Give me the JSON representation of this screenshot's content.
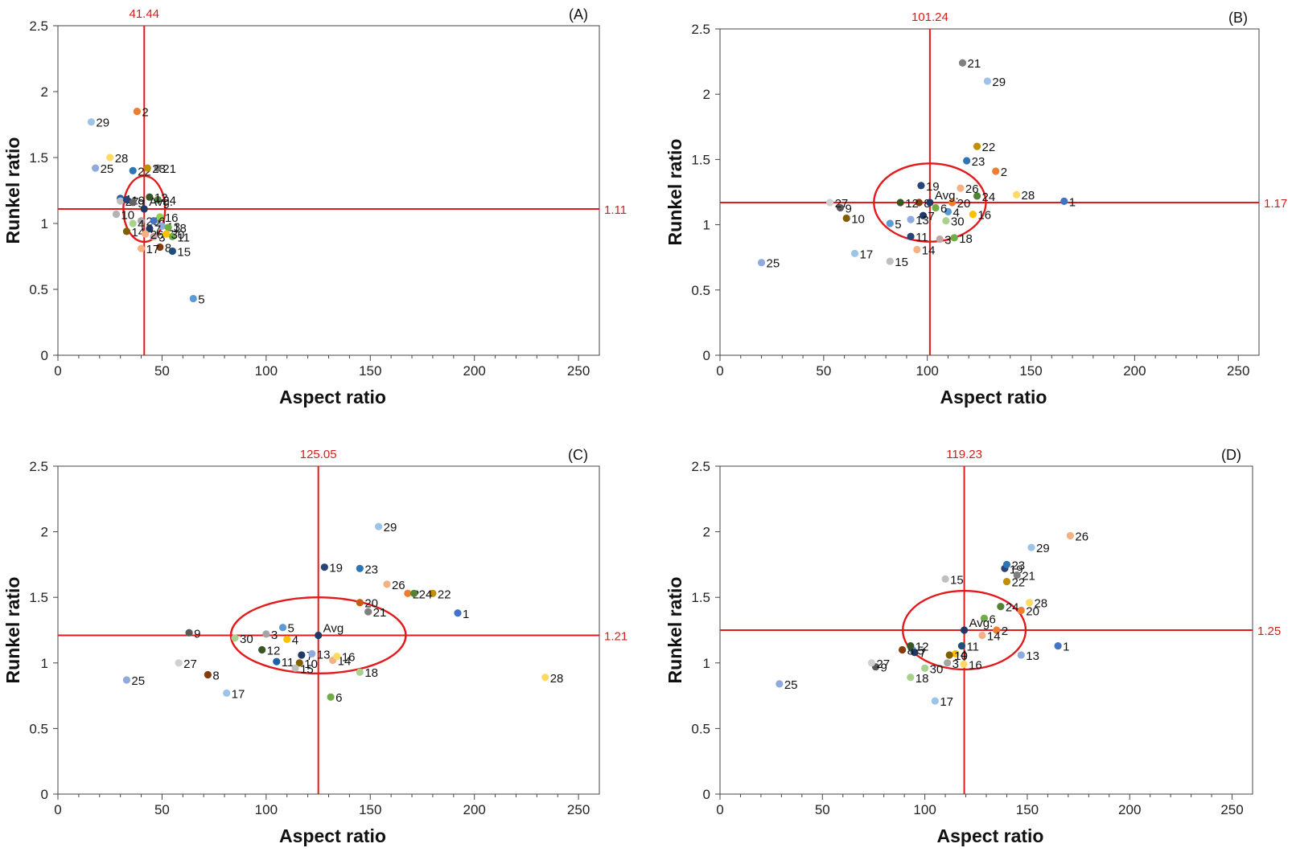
{
  "chart_data": [
    {
      "type": "scatter",
      "panel": "(A)",
      "xlabel": "Aspect ratio",
      "ylabel": "Runkel ratio",
      "xlim": [
        0,
        260
      ],
      "ylim": [
        0,
        2.5
      ],
      "xticks": [
        "0",
        "50",
        "100",
        "150",
        "200",
        "250"
      ],
      "yticks": [
        "0",
        "0.5",
        "1",
        "1.5",
        "2",
        "2.5"
      ],
      "avg": {
        "x": 41.44,
        "y": 1.11,
        "x_label": "41.44",
        "y_label": "1.11",
        "point_label": "Avg."
      },
      "ellipse": {
        "cx": 41.44,
        "cy": 1.11,
        "rx": 10,
        "ry": 0.25
      },
      "points": [
        {
          "label": "1",
          "x": 30,
          "y": 1.19,
          "color": "#1f5fa8"
        },
        {
          "label": "2",
          "x": 38,
          "y": 1.85,
          "color": "#ed7d31"
        },
        {
          "label": "5",
          "x": 65,
          "y": 0.43,
          "color": "#5b9bd5"
        },
        {
          "label": "11",
          "x": 55,
          "y": 0.9,
          "color": "#70ad47"
        },
        {
          "label": "14",
          "x": 33,
          "y": 0.94,
          "color": "#7f6000"
        },
        {
          "label": "20",
          "x": 40,
          "y": 1.02,
          "color": "#a5a5a5"
        },
        {
          "label": "21",
          "x": 48,
          "y": 1.42,
          "color": "#7f7f7f"
        },
        {
          "label": "22",
          "x": 36,
          "y": 1.4,
          "color": "#2e75b6"
        },
        {
          "label": "23",
          "x": 43,
          "y": 1.42,
          "color": "#bf9000"
        },
        {
          "label": "25",
          "x": 18,
          "y": 1.42,
          "color": "#8faadc"
        },
        {
          "label": "28",
          "x": 25,
          "y": 1.5,
          "color": "#ffd966"
        },
        {
          "label": "29",
          "x": 16,
          "y": 1.77,
          "color": "#9dc3e6"
        },
        {
          "label": "27",
          "x": 30,
          "y": 1.17,
          "color": "#bfbfbf"
        },
        {
          "label": "19",
          "x": 33,
          "y": 1.18,
          "color": "#264478"
        },
        {
          "label": "9",
          "x": 36,
          "y": 1.16,
          "color": "#636363"
        },
        {
          "label": "10",
          "x": 28,
          "y": 1.07,
          "color": "#b4b4b4"
        },
        {
          "label": "4",
          "x": 36,
          "y": 1.0,
          "color": "#a9d18e"
        },
        {
          "label": "24",
          "x": 48,
          "y": 1.18,
          "color": "#548235"
        },
        {
          "label": "12",
          "x": 44,
          "y": 1.2,
          "color": "#375623"
        },
        {
          "label": "16",
          "x": 49,
          "y": 1.05,
          "color": "#92d050"
        },
        {
          "label": "6",
          "x": 46,
          "y": 1.02,
          "color": "#4472c4"
        },
        {
          "label": "13",
          "x": 50,
          "y": 0.98,
          "color": "#8faadc"
        },
        {
          "label": "18",
          "x": 53,
          "y": 0.97,
          "color": "#70ad47"
        },
        {
          "label": "7",
          "x": 44,
          "y": 0.96,
          "color": "#203864"
        },
        {
          "label": "3",
          "x": 46,
          "y": 0.9,
          "color": "#c5a5a5"
        },
        {
          "label": "8",
          "x": 49,
          "y": 0.82,
          "color": "#843c0c"
        },
        {
          "label": "15",
          "x": 55,
          "y": 0.79,
          "color": "#1f4e79"
        },
        {
          "label": "17",
          "x": 40,
          "y": 0.81,
          "color": "#f4b183"
        },
        {
          "label": "26",
          "x": 42,
          "y": 0.92,
          "color": "#f4b183"
        },
        {
          "label": "30",
          "x": 52,
          "y": 0.92,
          "color": "#ffc000"
        }
      ]
    },
    {
      "type": "scatter",
      "panel": "(B)",
      "xlabel": "Aspect ratio",
      "ylabel": "Runkel ratio",
      "xlim": [
        0,
        260
      ],
      "ylim": [
        0,
        2.5
      ],
      "xticks": [
        "0",
        "50",
        "100",
        "150",
        "200",
        "250"
      ],
      "yticks": [
        "0",
        "0.5",
        "1",
        "1.5",
        "2",
        "2.5"
      ],
      "avg": {
        "x": 101.24,
        "y": 1.17,
        "x_label": "101.24",
        "y_label": "1.17",
        "point_label": "Avg."
      },
      "ellipse": {
        "cx": 101.24,
        "cy": 1.17,
        "rx": 27,
        "ry": 0.3
      },
      "points": [
        {
          "label": "1",
          "x": 166,
          "y": 1.18,
          "color": "#4472c4"
        },
        {
          "label": "2",
          "x": 133,
          "y": 1.41,
          "color": "#ed7d31"
        },
        {
          "label": "3",
          "x": 106,
          "y": 0.89,
          "color": "#c5a5a5"
        },
        {
          "label": "4",
          "x": 110,
          "y": 1.1,
          "color": "#5b9bd5"
        },
        {
          "label": "5",
          "x": 82,
          "y": 1.01,
          "color": "#5b9bd5"
        },
        {
          "label": "6",
          "x": 104,
          "y": 1.13,
          "color": "#70ad47"
        },
        {
          "label": "7",
          "x": 98,
          "y": 1.07,
          "color": "#203864"
        },
        {
          "label": "8",
          "x": 96,
          "y": 1.17,
          "color": "#843c0c"
        },
        {
          "label": "9",
          "x": 58,
          "y": 1.13,
          "color": "#595959"
        },
        {
          "label": "10",
          "x": 61,
          "y": 1.05,
          "color": "#7f6000"
        },
        {
          "label": "11",
          "x": 92,
          "y": 0.91,
          "color": "#264478"
        },
        {
          "label": "12",
          "x": 87,
          "y": 1.17,
          "color": "#375623"
        },
        {
          "label": "13",
          "x": 92,
          "y": 1.04,
          "color": "#8faadc"
        },
        {
          "label": "14",
          "x": 95,
          "y": 0.81,
          "color": "#f4b183"
        },
        {
          "label": "15",
          "x": 82,
          "y": 0.72,
          "color": "#bfbfbf"
        },
        {
          "label": "16",
          "x": 122,
          "y": 1.08,
          "color": "#ffc000"
        },
        {
          "label": "17",
          "x": 65,
          "y": 0.78,
          "color": "#9dc3e6"
        },
        {
          "label": "18",
          "x": 113,
          "y": 0.9,
          "color": "#70ad47"
        },
        {
          "label": "19",
          "x": 97,
          "y": 1.3,
          "color": "#264478"
        },
        {
          "label": "20",
          "x": 112,
          "y": 1.17,
          "color": "#ed7d31"
        },
        {
          "label": "21",
          "x": 117,
          "y": 2.24,
          "color": "#7f7f7f"
        },
        {
          "label": "22",
          "x": 124,
          "y": 1.6,
          "color": "#bf9000"
        },
        {
          "label": "23",
          "x": 119,
          "y": 1.49,
          "color": "#2e75b6"
        },
        {
          "label": "24",
          "x": 124,
          "y": 1.22,
          "color": "#548235"
        },
        {
          "label": "25",
          "x": 20,
          "y": 0.71,
          "color": "#8faadc"
        },
        {
          "label": "26",
          "x": 116,
          "y": 1.28,
          "color": "#f4b183"
        },
        {
          "label": "27",
          "x": 53,
          "y": 1.17,
          "color": "#d0d0d0"
        },
        {
          "label": "28",
          "x": 143,
          "y": 1.23,
          "color": "#ffd966"
        },
        {
          "label": "29",
          "x": 129,
          "y": 2.1,
          "color": "#9dc3e6"
        },
        {
          "label": "30",
          "x": 109,
          "y": 1.03,
          "color": "#a9d18e"
        }
      ]
    },
    {
      "type": "scatter",
      "panel": "(C)",
      "xlabel": "Aspect ratio",
      "ylabel": "Runkel ratio",
      "xlim": [
        0,
        260
      ],
      "ylim": [
        0,
        2.5
      ],
      "xticks": [
        "0",
        "50",
        "100",
        "150",
        "200",
        "250"
      ],
      "yticks": [
        "0",
        "0.5",
        "1",
        "1.5",
        "2",
        "2.5"
      ],
      "avg": {
        "x": 125.05,
        "y": 1.21,
        "x_label": "125.05",
        "y_label": "1.21",
        "point_label": "Avg"
      },
      "ellipse": {
        "cx": 125.05,
        "cy": 1.21,
        "rx": 42,
        "ry": 0.29
      },
      "points": [
        {
          "label": "1",
          "x": 192,
          "y": 1.38,
          "color": "#4472c4"
        },
        {
          "label": "2",
          "x": 168,
          "y": 1.53,
          "color": "#ed7d31"
        },
        {
          "label": "3",
          "x": 100,
          "y": 1.22,
          "color": "#a5a5a5"
        },
        {
          "label": "4",
          "x": 110,
          "y": 1.18,
          "color": "#ffc000"
        },
        {
          "label": "5",
          "x": 108,
          "y": 1.27,
          "color": "#5b9bd5"
        },
        {
          "label": "6",
          "x": 131,
          "y": 0.74,
          "color": "#70ad47"
        },
        {
          "label": "7",
          "x": 117,
          "y": 1.06,
          "color": "#203864"
        },
        {
          "label": "8",
          "x": 72,
          "y": 0.91,
          "color": "#843c0c"
        },
        {
          "label": "9",
          "x": 63,
          "y": 1.23,
          "color": "#595959"
        },
        {
          "label": "10",
          "x": 116,
          "y": 1.0,
          "color": "#7f6000"
        },
        {
          "label": "11",
          "x": 105,
          "y": 1.01,
          "color": "#1f5fa8"
        },
        {
          "label": "12",
          "x": 98,
          "y": 1.1,
          "color": "#375623"
        },
        {
          "label": "13",
          "x": 122,
          "y": 1.07,
          "color": "#8faadc"
        },
        {
          "label": "14",
          "x": 132,
          "y": 1.02,
          "color": "#f4b183"
        },
        {
          "label": "15",
          "x": 114,
          "y": 0.96,
          "color": "#bfbfbf"
        },
        {
          "label": "16",
          "x": 134,
          "y": 1.05,
          "color": "#ffd966"
        },
        {
          "label": "17",
          "x": 81,
          "y": 0.77,
          "color": "#9dc3e6"
        },
        {
          "label": "18",
          "x": 145,
          "y": 0.93,
          "color": "#a9d18e"
        },
        {
          "label": "19",
          "x": 128,
          "y": 1.73,
          "color": "#264478"
        },
        {
          "label": "20",
          "x": 145,
          "y": 1.46,
          "color": "#c55a11"
        },
        {
          "label": "21",
          "x": 149,
          "y": 1.39,
          "color": "#7f7f7f"
        },
        {
          "label": "22",
          "x": 180,
          "y": 1.53,
          "color": "#bf9000"
        },
        {
          "label": "23",
          "x": 145,
          "y": 1.72,
          "color": "#2e75b6"
        },
        {
          "label": "24",
          "x": 171,
          "y": 1.53,
          "color": "#548235"
        },
        {
          "label": "25",
          "x": 33,
          "y": 0.87,
          "color": "#8faadc"
        },
        {
          "label": "26",
          "x": 158,
          "y": 1.6,
          "color": "#f4b183"
        },
        {
          "label": "27",
          "x": 58,
          "y": 1.0,
          "color": "#d0d0d0"
        },
        {
          "label": "28",
          "x": 234,
          "y": 0.89,
          "color": "#ffd966"
        },
        {
          "label": "29",
          "x": 154,
          "y": 2.04,
          "color": "#9dc3e6"
        },
        {
          "label": "30",
          "x": 85,
          "y": 1.19,
          "color": "#a9d18e"
        }
      ]
    },
    {
      "type": "scatter",
      "panel": "(D)",
      "xlabel": "Aspect ratio",
      "ylabel": "Runkel ratio",
      "xlim": [
        0,
        260
      ],
      "ylim": [
        0,
        2.5
      ],
      "xticks": [
        "0",
        "50",
        "100",
        "150",
        "200",
        "250"
      ],
      "yticks": [
        "0",
        "0.5",
        "1",
        "1.5",
        "2",
        "2.5"
      ],
      "avg": {
        "x": 119.23,
        "y": 1.25,
        "x_label": "119.23",
        "y_label": "1.25",
        "point_label": "Avg."
      },
      "ellipse": {
        "cx": 119.23,
        "cy": 1.25,
        "rx": 30,
        "ry": 0.3
      },
      "points": [
        {
          "label": "1",
          "x": 165,
          "y": 1.13,
          "color": "#4472c4"
        },
        {
          "label": "2",
          "x": 135,
          "y": 1.25,
          "color": "#ed7d31"
        },
        {
          "label": "3",
          "x": 111,
          "y": 1.0,
          "color": "#a5a5a5"
        },
        {
          "label": "4",
          "x": 115,
          "y": 1.07,
          "color": "#ffc000"
        },
        {
          "label": "5",
          "x": 94,
          "y": 1.1,
          "color": "#5b9bd5"
        },
        {
          "label": "6",
          "x": 129,
          "y": 1.34,
          "color": "#70ad47"
        },
        {
          "label": "7",
          "x": 95,
          "y": 1.08,
          "color": "#203864"
        },
        {
          "label": "8",
          "x": 89,
          "y": 1.1,
          "color": "#843c0c"
        },
        {
          "label": "9",
          "x": 76,
          "y": 0.97,
          "color": "#595959"
        },
        {
          "label": "10",
          "x": 112,
          "y": 1.06,
          "color": "#7f6000"
        },
        {
          "label": "11",
          "x": 118,
          "y": 1.13,
          "color": "#1f4e79"
        },
        {
          "label": "12",
          "x": 93,
          "y": 1.13,
          "color": "#375623"
        },
        {
          "label": "13",
          "x": 147,
          "y": 1.06,
          "color": "#8faadc"
        },
        {
          "label": "14",
          "x": 128,
          "y": 1.21,
          "color": "#f4b183"
        },
        {
          "label": "15",
          "x": 110,
          "y": 1.64,
          "color": "#bfbfbf"
        },
        {
          "label": "16",
          "x": 119,
          "y": 0.99,
          "color": "#ffd966"
        },
        {
          "label": "17",
          "x": 105,
          "y": 0.71,
          "color": "#9dc3e6"
        },
        {
          "label": "18",
          "x": 93,
          "y": 0.89,
          "color": "#a9d18e"
        },
        {
          "label": "19",
          "x": 139,
          "y": 1.72,
          "color": "#264478"
        },
        {
          "label": "20",
          "x": 147,
          "y": 1.4,
          "color": "#ed7d31"
        },
        {
          "label": "21",
          "x": 145,
          "y": 1.67,
          "color": "#7f7f7f"
        },
        {
          "label": "22",
          "x": 140,
          "y": 1.62,
          "color": "#bf9000"
        },
        {
          "label": "23",
          "x": 140,
          "y": 1.75,
          "color": "#2e75b6"
        },
        {
          "label": "24",
          "x": 137,
          "y": 1.43,
          "color": "#548235"
        },
        {
          "label": "25",
          "x": 29,
          "y": 0.84,
          "color": "#8faadc"
        },
        {
          "label": "26",
          "x": 171,
          "y": 1.97,
          "color": "#f4b183"
        },
        {
          "label": "27",
          "x": 74,
          "y": 1.0,
          "color": "#d0d0d0"
        },
        {
          "label": "28",
          "x": 151,
          "y": 1.46,
          "color": "#ffd966"
        },
        {
          "label": "29",
          "x": 152,
          "y": 1.88,
          "color": "#9dc3e6"
        },
        {
          "label": "30",
          "x": 100,
          "y": 0.96,
          "color": "#a9d18e"
        }
      ]
    }
  ]
}
